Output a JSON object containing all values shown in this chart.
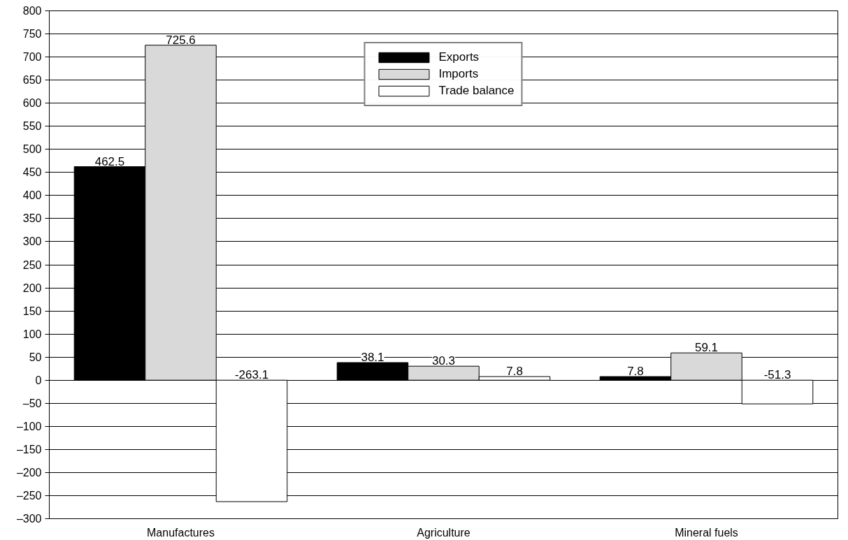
{
  "chart_data": {
    "type": "bar",
    "categories": [
      "Manufactures",
      "Agriculture",
      "Mineral fuels"
    ],
    "series": [
      {
        "name": "Exports",
        "color": "#000000",
        "values": [
          462.5,
          38.1,
          7.8
        ]
      },
      {
        "name": "Imports",
        "color": "#d9d9d9",
        "values": [
          725.6,
          30.3,
          59.1
        ]
      },
      {
        "name": "Trade balance",
        "color": "#ffffff",
        "values": [
          -263.1,
          7.8,
          -51.3
        ]
      }
    ],
    "ylim": [
      -300,
      800
    ],
    "yticks": [
      {
        "value": -300,
        "label": "–300"
      },
      {
        "value": -250,
        "label": "–250"
      },
      {
        "value": -200,
        "label": "–200"
      },
      {
        "value": -150,
        "label": "–150"
      },
      {
        "value": -100,
        "label": "–100"
      },
      {
        "value": -50,
        "label": "–50"
      },
      0,
      50,
      100,
      150,
      200,
      250,
      300,
      350,
      400,
      450,
      500,
      550,
      600,
      650,
      700,
      750,
      800
    ],
    "grid": "y",
    "legend": "top",
    "data_labels": true
  }
}
